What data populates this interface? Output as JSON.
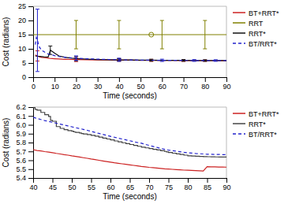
{
  "chart_data": [
    {
      "type": "line",
      "xlabel": "Time (seconds)",
      "ylabel": "Cost (radians)",
      "xlim": [
        0,
        90
      ],
      "ylim": [
        0,
        25
      ],
      "xticks": [
        0,
        10,
        20,
        30,
        40,
        50,
        60,
        70,
        80,
        90
      ],
      "yticks": [
        0,
        5,
        10,
        15,
        20,
        25
      ],
      "legend": "right",
      "series": [
        {
          "name": "BT+RRT*",
          "color": "#cc2222",
          "line_style": "solid",
          "x": [
            1,
            2,
            3,
            4,
            5,
            6,
            7,
            8,
            9,
            10,
            12,
            15,
            18,
            20,
            25,
            30,
            35,
            40,
            45,
            50,
            55,
            60,
            65,
            70,
            75,
            80,
            85,
            90
          ],
          "values": [
            7.8,
            7.5,
            7.2,
            7.0,
            6.9,
            6.8,
            6.7,
            6.6,
            6.55,
            6.5,
            6.4,
            6.3,
            6.25,
            6.2,
            6.15,
            6.1,
            6.07,
            6.03,
            5.99,
            5.96,
            5.94,
            5.92,
            5.9,
            5.88,
            5.86,
            5.84,
            5.83,
            5.82
          ],
          "error_bars": {
            "x": [
              2,
              20,
              40,
              55,
              70,
              80
            ],
            "y": [
              7.5,
              6.2,
              6.03,
              5.94,
              5.88,
              5.84
            ],
            "error": [
              1.8,
              0.7,
              0.4,
              0.35,
              0.3,
              0.25
            ]
          }
        },
        {
          "name": "RRT",
          "type": "hline",
          "color": "#808000",
          "line_style": "solid",
          "y": 15.0,
          "error_bars": {
            "x": [
              20,
              40,
              60,
              80
            ],
            "minus": [
              5,
              5,
              5,
              5
            ],
            "plus": [
              5,
              5,
              5,
              5
            ]
          },
          "point": {
            "x": 55,
            "y": 15.0
          },
          "marker": "open-circle"
        },
        {
          "name": "RRT*",
          "color": "#111111",
          "line_style": "solid",
          "x": [
            1,
            2,
            3,
            5,
            7,
            8,
            9,
            10,
            11,
            12,
            15,
            18,
            20,
            25,
            30,
            35,
            40,
            45,
            50,
            55,
            60,
            65,
            70,
            75,
            80,
            85,
            90
          ],
          "values": [
            7.5,
            7.4,
            7.35,
            7.2,
            7.1,
            9.5,
            9.0,
            8.5,
            8.0,
            7.5,
            7.0,
            6.7,
            6.55,
            6.35,
            6.22,
            6.15,
            6.1,
            6.05,
            6.0,
            5.98,
            5.95,
            5.93,
            5.91,
            5.89,
            5.87,
            5.86,
            5.85
          ],
          "error_bars": {
            "x": [
              8,
              20,
              40,
              55,
              70,
              80
            ],
            "y": [
              9.5,
              6.55,
              6.1,
              5.98,
              5.91,
              5.87
            ],
            "error": [
              1.5,
              0.75,
              0.45,
              0.35,
              0.3,
              0.28
            ]
          }
        },
        {
          "name": "BT/RRT*",
          "color": "#2222cc",
          "line_style": "dashed",
          "x": [
            1,
            1.5,
            2,
            2.5,
            3,
            4,
            5,
            6,
            7,
            8,
            10,
            12,
            15,
            18,
            20,
            25,
            30,
            35,
            40,
            45,
            50,
            55,
            60,
            65,
            70,
            75,
            80,
            85,
            90
          ],
          "values": [
            11.5,
            14.0,
            13.0,
            11.5,
            10.5,
            9.5,
            9.0,
            8.5,
            8.2,
            8.0,
            7.6,
            7.3,
            7.0,
            6.8,
            6.7,
            6.5,
            6.35,
            6.25,
            6.15,
            6.08,
            6.02,
            5.98,
            5.95,
            5.93,
            5.91,
            5.89,
            5.88,
            5.87,
            5.86
          ],
          "error_bars": {
            "x": [
              2,
              20,
              40,
              60,
              75,
              85
            ],
            "y": [
              13.0,
              6.7,
              6.15,
              5.95,
              5.89,
              5.87
            ],
            "error": [
              11.0,
              0.8,
              0.55,
              0.4,
              0.32,
              0.28
            ]
          }
        }
      ]
    },
    {
      "type": "line",
      "xlabel": "Time (seconds)",
      "ylabel": "Cost (radians)",
      "xlim": [
        40,
        90
      ],
      "ylim": [
        5.4,
        6.2
      ],
      "xticks": [
        40,
        45,
        50,
        55,
        60,
        65,
        70,
        75,
        80,
        85,
        90
      ],
      "yticks": [
        5.4,
        5.5,
        5.6,
        5.7,
        5.8,
        5.9,
        {
          "value": 6,
          "label": "6.0"
        },
        6.1,
        6.2
      ],
      "legend": "right",
      "series": [
        {
          "name": "BT+RRT*",
          "color": "#cc2222",
          "line_style": "solid",
          "x": [
            40,
            41,
            42,
            43,
            44,
            45,
            46,
            47,
            48,
            49,
            50,
            51,
            52,
            53,
            54,
            55,
            56,
            57,
            58,
            59,
            60,
            61,
            62,
            63,
            64,
            65,
            66,
            67,
            68,
            69,
            70,
            71,
            72,
            73,
            74,
            75,
            76,
            77,
            78,
            79,
            80,
            81,
            82,
            83,
            84,
            85,
            86,
            87,
            88,
            89,
            90
          ],
          "values": [
            5.72,
            5.71,
            5.705,
            5.698,
            5.692,
            5.686,
            5.678,
            5.671,
            5.664,
            5.658,
            5.65,
            5.643,
            5.636,
            5.629,
            5.622,
            5.614,
            5.607,
            5.6,
            5.593,
            5.586,
            5.579,
            5.572,
            5.566,
            5.56,
            5.554,
            5.548,
            5.542,
            5.536,
            5.53,
            5.525,
            5.52,
            5.516,
            5.512,
            5.508,
            5.504,
            5.501,
            5.498,
            5.495,
            5.492,
            5.489,
            5.487,
            5.485,
            5.483,
            5.481,
            5.479,
            5.527,
            5.526,
            5.525,
            5.524,
            5.523,
            5.522
          ]
        },
        {
          "name": "RRT*",
          "type": "step",
          "color": "#444444",
          "line_style": "solid",
          "x": [
            40,
            40.5,
            41,
            42,
            43,
            44,
            44.5,
            45,
            46,
            47,
            48,
            49,
            50,
            50.5,
            51,
            52,
            52.5,
            53,
            54,
            55,
            56,
            57,
            58,
            59,
            60,
            61,
            62,
            63,
            64,
            65,
            66,
            67,
            68,
            69,
            70,
            71,
            72,
            73,
            74,
            74.5,
            75,
            76,
            77,
            78,
            79,
            80,
            81,
            82,
            83,
            84,
            85,
            86,
            87,
            88,
            89,
            90
          ],
          "values": [
            6.195,
            6.175,
            6.165,
            6.14,
            6.115,
            6.095,
            6.05,
            6.04,
            5.98,
            5.96,
            5.945,
            5.935,
            5.928,
            5.92,
            5.915,
            5.908,
            5.902,
            5.896,
            5.89,
            5.882,
            5.872,
            5.862,
            5.85,
            5.84,
            5.83,
            5.818,
            5.808,
            5.798,
            5.788,
            5.778,
            5.768,
            5.758,
            5.748,
            5.74,
            5.732,
            5.724,
            5.716,
            5.708,
            5.7,
            5.694,
            5.688,
            5.68,
            5.672,
            5.665,
            5.658,
            5.65,
            5.648,
            5.646,
            5.644,
            5.642,
            5.64,
            5.639,
            5.638,
            5.637,
            5.636,
            5.635
          ]
        },
        {
          "name": "BT/RRT*",
          "color": "#2222cc",
          "line_style": "dashed",
          "x": [
            40,
            41,
            42,
            43,
            44,
            45,
            46,
            47,
            48,
            49,
            50,
            51,
            52,
            53,
            54,
            55,
            56,
            57,
            58,
            59,
            60,
            61,
            62,
            63,
            64,
            65,
            66,
            67,
            68,
            69,
            70,
            71,
            72,
            73,
            74,
            75,
            76,
            77,
            78,
            79,
            80,
            81,
            82,
            83,
            84,
            85,
            86,
            87,
            88,
            89,
            90
          ],
          "values": [
            6.085,
            6.072,
            6.06,
            6.048,
            6.038,
            6.028,
            6.018,
            6.008,
            5.998,
            5.988,
            5.978,
            5.968,
            5.958,
            5.948,
            5.938,
            5.926,
            5.914,
            5.903,
            5.892,
            5.881,
            5.87,
            5.86,
            5.85,
            5.84,
            5.83,
            5.82,
            5.81,
            5.8,
            5.792,
            5.78,
            5.768,
            5.756,
            5.745,
            5.734,
            5.724,
            5.715,
            5.708,
            5.702,
            5.696,
            5.69,
            5.685,
            5.681,
            5.677,
            5.674,
            5.671,
            5.668,
            5.667,
            5.666,
            5.665,
            5.664,
            5.663
          ]
        }
      ]
    }
  ]
}
